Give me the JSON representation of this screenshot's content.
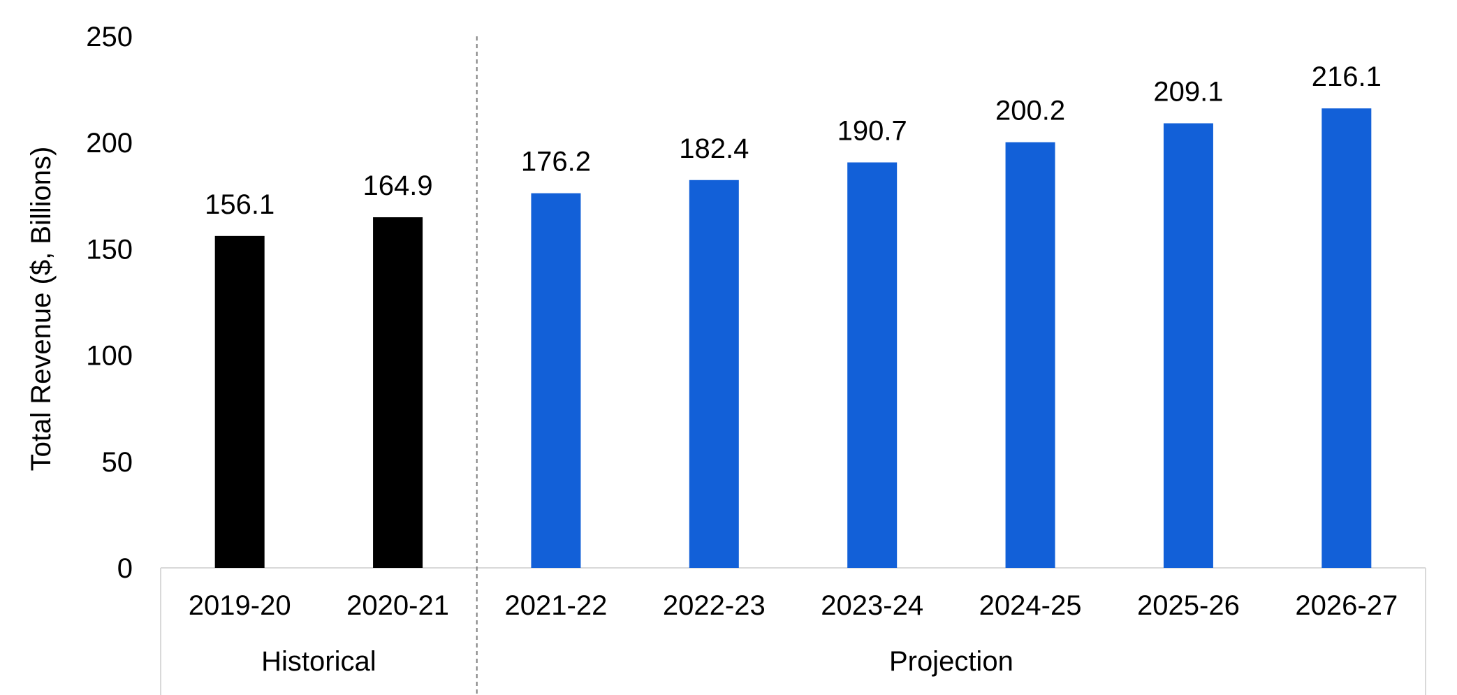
{
  "chart_data": {
    "type": "bar",
    "title": "",
    "xlabel": "",
    "ylabel": "Total Revenue ($, Billions)",
    "ylim": [
      0,
      250
    ],
    "yticks": [
      0,
      50,
      100,
      150,
      200,
      250
    ],
    "grid": false,
    "legend": "none",
    "categories": [
      "2019-20",
      "2020-21",
      "2021-22",
      "2022-23",
      "2023-24",
      "2024-25",
      "2025-26",
      "2026-27"
    ],
    "values": [
      156.1,
      164.9,
      176.2,
      182.4,
      190.7,
      200.2,
      209.1,
      216.1
    ],
    "data_labels": [
      "156.1",
      "164.9",
      "176.2",
      "182.4",
      "190.7",
      "200.2",
      "209.1",
      "216.1"
    ],
    "groups": [
      {
        "label": "Historical",
        "categories": [
          "2019-20",
          "2020-21"
        ],
        "color": "#000000"
      },
      {
        "label": "Projection",
        "categories": [
          "2021-22",
          "2022-23",
          "2023-24",
          "2024-25",
          "2025-26",
          "2026-27"
        ],
        "color": "#1260d8"
      }
    ],
    "colors": {
      "historical": "#000000",
      "projection": "#1260d8",
      "axis": "#d9d9d9",
      "divider": "#808080"
    }
  }
}
